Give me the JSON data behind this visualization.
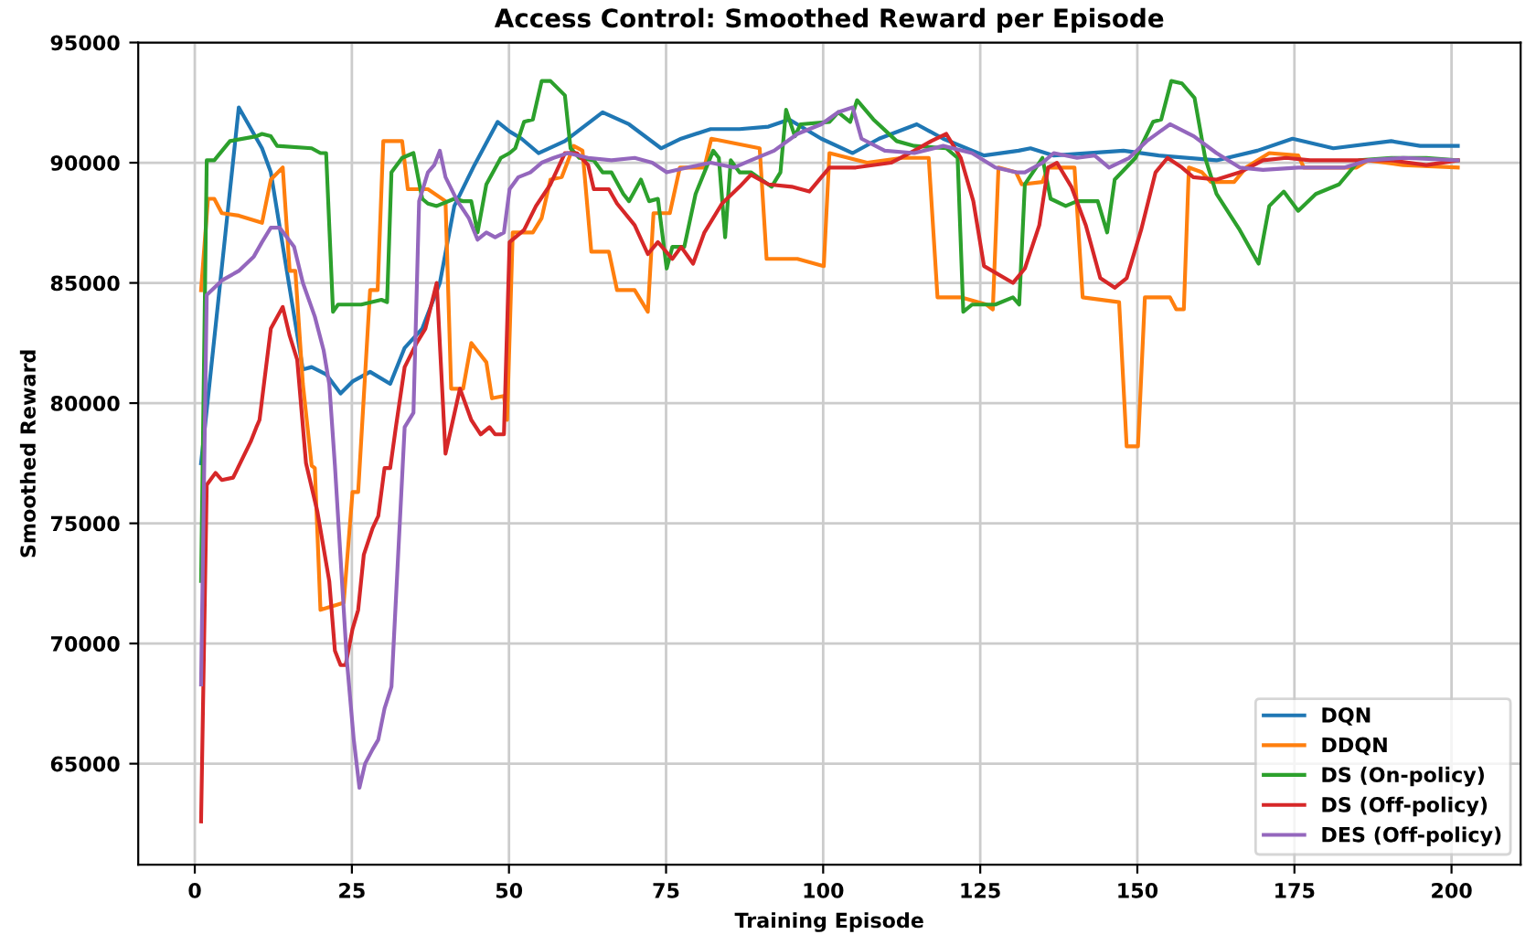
{
  "chart_data": {
    "type": "line",
    "title": "Access Control: Smoothed Reward per Episode",
    "xlabel": "Training Episode",
    "ylabel": "Smoothed Reward",
    "xlim": [
      -9,
      211
    ],
    "ylim": [
      60800,
      95000
    ],
    "xticks": [
      0,
      25,
      50,
      75,
      100,
      125,
      150,
      175,
      200
    ],
    "yticks": [
      65000,
      70000,
      75000,
      80000,
      85000,
      90000,
      95000
    ],
    "grid": true,
    "legend": "bottom right",
    "marker": "none",
    "line_style": "solid",
    "series": [
      {
        "name": "DQN",
        "color": "#1f77b4",
        "x": [
          1,
          7,
          10.7,
          12.1,
          17.2,
          18.6,
          20.9,
          23.2,
          25.1,
          27.9,
          31.1,
          33.4,
          36.2,
          39,
          41.3,
          44.5,
          48.2,
          50.1,
          52,
          54.7,
          58.9,
          64.9,
          69.1,
          74.2,
          77.4,
          82.1,
          86.7,
          91.3,
          94.6,
          99.7,
          104.7,
          108.9,
          114.9,
          119.1,
          125.6,
          131.1,
          133,
          136.7,
          147.8,
          153.4,
          162.6,
          169.1,
          174.7,
          181.2,
          190.4,
          195,
          201
        ],
        "values": [
          77500,
          92300,
          90600,
          89600,
          81400,
          81500,
          81200,
          80400,
          80900,
          81300,
          80800,
          82300,
          83100,
          85000,
          88200,
          89900,
          91700,
          91300,
          91000,
          90400,
          90900,
          92100,
          91600,
          90600,
          91000,
          91400,
          91400,
          91500,
          91800,
          91000,
          90400,
          91000,
          91600,
          91000,
          90300,
          90500,
          90600,
          90300,
          90500,
          90300,
          90100,
          90500,
          91000,
          90600,
          90900,
          90700,
          90700
        ]
      },
      {
        "name": "DDQN",
        "color": "#ff7f0e",
        "x": [
          1,
          2.1,
          3.1,
          4.3,
          7,
          10.7,
          12.1,
          14,
          15.1,
          16,
          17.2,
          18.6,
          19.1,
          20,
          23.7,
          25.1,
          26,
          27.9,
          29.1,
          30,
          33,
          33.9,
          37.1,
          39.9,
          40.8,
          42.7,
          44,
          46.4,
          47.3,
          49.2,
          49.7,
          50.6,
          53.8,
          55.2,
          56.6,
          58.4,
          60.3,
          61.7,
          63.1,
          65.9,
          67.2,
          70,
          72.1,
          73,
          75.6,
          77.2,
          81.1,
          82.2,
          89.9,
          91,
          95.9,
          100.1,
          101,
          107,
          112.6,
          116.8,
          118.2,
          121.9,
          126,
          127,
          127.9,
          130.7,
          131.6,
          134.9,
          135.8,
          140,
          141.3,
          147.1,
          148.3,
          150.1,
          151.2,
          155.2,
          156.2,
          157.4,
          158.2,
          160.3,
          161.7,
          165.4,
          167.3,
          171,
          175.6,
          176.5,
          184.9,
          186.7,
          192.3,
          201
        ],
        "values": [
          84700,
          88500,
          88500,
          87900,
          87800,
          87500,
          89300,
          89800,
          85500,
          85500,
          80800,
          77400,
          77300,
          71400,
          71700,
          76300,
          76300,
          84700,
          84700,
          90900,
          90900,
          88900,
          88900,
          88400,
          80600,
          80600,
          82500,
          81700,
          80200,
          80300,
          79300,
          87100,
          87100,
          87700,
          89300,
          89400,
          90700,
          90500,
          86300,
          86300,
          84700,
          84700,
          83800,
          87900,
          87900,
          89800,
          89800,
          91000,
          90600,
          86000,
          86000,
          85700,
          90400,
          90000,
          90200,
          90200,
          84400,
          84400,
          84100,
          83900,
          89800,
          89600,
          89100,
          89200,
          89800,
          89800,
          84400,
          84200,
          78200,
          78200,
          84400,
          84400,
          83900,
          83900,
          89800,
          89600,
          89200,
          89200,
          89800,
          90400,
          90300,
          89800,
          89800,
          90100,
          89900,
          89800
        ]
      },
      {
        "name": "DS (On-policy)",
        "color": "#2ca02c",
        "x": [
          1,
          1.9,
          3.1,
          5.6,
          9.8,
          10.7,
          12.1,
          13.1,
          18.6,
          20,
          20.9,
          22,
          22.8,
          26.5,
          29.7,
          30.6,
          31.3,
          33,
          34.8,
          36.2,
          37.1,
          38.5,
          41.3,
          42.7,
          44,
          45,
          46.4,
          48.7,
          50.1,
          51,
          52.4,
          53.8,
          55.2,
          56.6,
          58.9,
          59.8,
          61.2,
          63.5,
          64.9,
          66.3,
          68.2,
          69.1,
          71,
          72.3,
          73.7,
          75.1,
          76,
          77.9,
          79.7,
          82.5,
          83.4,
          84.4,
          85.3,
          86.7,
          88.5,
          91.8,
          93.2,
          94.1,
          95.5,
          96.4,
          101,
          102.4,
          104.3,
          105.4,
          108,
          111.7,
          114.5,
          119.6,
          121.4,
          122.3,
          123.7,
          127.4,
          130.2,
          131.2,
          132.1,
          134.9,
          136.2,
          138.6,
          140.4,
          143.7,
          145.2,
          146.4,
          149.7,
          152.5,
          153.8,
          155.4,
          157.1,
          159.1,
          160.8,
          162.6,
          166.3,
          169.3,
          171,
          173.3,
          175.6,
          178.4,
          182.1,
          185.3,
          190.4,
          196,
          201
        ],
        "values": [
          72600,
          90100,
          90100,
          90900,
          91100,
          91200,
          91100,
          90700,
          90600,
          90400,
          90400,
          83800,
          84100,
          84100,
          84300,
          84200,
          89600,
          90200,
          90400,
          88500,
          88300,
          88200,
          88500,
          88400,
          88400,
          87100,
          89100,
          90200,
          90400,
          90600,
          91700,
          91800,
          93400,
          93400,
          92800,
          90600,
          90200,
          90100,
          89600,
          89600,
          88700,
          88400,
          89300,
          88400,
          88500,
          85600,
          86500,
          86500,
          88700,
          90500,
          90200,
          86900,
          90100,
          89600,
          89600,
          89000,
          89600,
          92200,
          91100,
          91600,
          91700,
          92100,
          91700,
          92600,
          91800,
          90900,
          90700,
          90600,
          90200,
          83800,
          84100,
          84100,
          84400,
          84100,
          89100,
          90200,
          88500,
          88200,
          88400,
          88400,
          87100,
          89300,
          90200,
          91700,
          91800,
          93400,
          93300,
          92700,
          90200,
          88700,
          87200,
          85800,
          88200,
          88800,
          88000,
          88700,
          89100,
          90100,
          90200,
          90200,
          90100
        ]
      },
      {
        "name": "DS (Off-policy)",
        "color": "#d62728",
        "x": [
          1,
          1.9,
          3.3,
          4.3,
          6.1,
          8.9,
          9.8,
          10.3,
          12.1,
          14,
          15.1,
          16.3,
          17.7,
          19.5,
          21.4,
          22.3,
          23.2,
          24,
          25.1,
          26,
          26.9,
          28.3,
          29.2,
          30.2,
          31.1,
          32,
          33.4,
          35.3,
          36.7,
          38.5,
          39.9,
          42.2,
          44,
          45.5,
          46.9,
          47.8,
          49.2,
          50.1,
          52.4,
          54.3,
          56.6,
          58.9,
          60.8,
          62.6,
          63.5,
          65.9,
          67.2,
          70,
          72.1,
          73.7,
          76,
          77.4,
          79.3,
          81.1,
          83.9,
          86.7,
          88.5,
          91.3,
          95,
          97.8,
          101,
          105.2,
          110.8,
          114.5,
          117.2,
          119.6,
          121.9,
          123.9,
          125.6,
          130.2,
          132.1,
          134.4,
          135.8,
          137.2,
          139.5,
          141.8,
          144.1,
          146.4,
          148.3,
          150.6,
          152.9,
          154.8,
          157.1,
          158.9,
          162.6,
          166.3,
          170,
          173.7,
          177.5,
          183,
          190.4,
          196,
          201
        ],
        "values": [
          62600,
          76600,
          77100,
          76800,
          76900,
          78400,
          79000,
          79300,
          83100,
          84000,
          82800,
          81800,
          77500,
          75500,
          72600,
          69700,
          69100,
          69100,
          70600,
          71400,
          73700,
          74800,
          75300,
          77300,
          77300,
          79000,
          81500,
          82500,
          83100,
          85000,
          77900,
          80600,
          79300,
          78700,
          79000,
          78700,
          78700,
          86700,
          87200,
          88200,
          89100,
          90400,
          90400,
          89900,
          88900,
          88900,
          88300,
          87400,
          86200,
          86700,
          86000,
          86500,
          85800,
          87100,
          88300,
          89000,
          89500,
          89100,
          89000,
          88800,
          89800,
          89800,
          90000,
          90500,
          90900,
          91200,
          90200,
          88400,
          85700,
          85000,
          85600,
          87400,
          89800,
          90000,
          89000,
          87400,
          85200,
          84800,
          85200,
          87200,
          89600,
          90200,
          89800,
          89400,
          89300,
          89600,
          90100,
          90200,
          90100,
          90100,
          90100,
          89900,
          90100
        ]
      },
      {
        "name": "DES (Off-policy)",
        "color": "#9467bd",
        "x": [
          1,
          1.9,
          4.3,
          7,
          9.4,
          10.7,
          12.1,
          13.5,
          15.8,
          17.2,
          19.1,
          20.5,
          21.4,
          22.3,
          24.2,
          25.3,
          26.2,
          27.1,
          28.3,
          29.2,
          30.2,
          31.3,
          33.4,
          34.8,
          35.7,
          37.1,
          38.1,
          39,
          39.9,
          41.8,
          43.6,
          45,
          46.4,
          47.8,
          49.2,
          50.1,
          51.5,
          53.4,
          55.2,
          57.1,
          59.4,
          62.6,
          66.3,
          70,
          72.8,
          75.1,
          78.4,
          82.1,
          85.8,
          88.5,
          92.2,
          95.9,
          99.7,
          102.4,
          104.7,
          106.1,
          109.8,
          114.5,
          119.1,
          123.7,
          127.4,
          130.7,
          132.1,
          134.9,
          136.7,
          140.4,
          143.2,
          145.5,
          148.7,
          151.5,
          155.2,
          159,
          162.6,
          166.3,
          170,
          175.6,
          183,
          186.7,
          192.3,
          201
        ],
        "values": [
          68300,
          84500,
          85100,
          85500,
          86100,
          86700,
          87300,
          87300,
          86500,
          85000,
          83600,
          82200,
          80800,
          77400,
          69300,
          66000,
          64000,
          65000,
          65600,
          66000,
          67300,
          68200,
          79000,
          79600,
          88400,
          89600,
          89900,
          90500,
          89400,
          88400,
          87700,
          86800,
          87100,
          86900,
          87100,
          88900,
          89400,
          89600,
          90000,
          90200,
          90400,
          90200,
          90100,
          90200,
          90000,
          89600,
          89800,
          90000,
          89800,
          90100,
          90500,
          91200,
          91600,
          92100,
          92300,
          91000,
          90500,
          90400,
          90700,
          90400,
          89800,
          89600,
          89600,
          90000,
          90400,
          90200,
          90300,
          89800,
          90200,
          90900,
          91600,
          91100,
          90400,
          89800,
          89700,
          89800,
          89800,
          90100,
          90200,
          90100
        ]
      }
    ]
  }
}
